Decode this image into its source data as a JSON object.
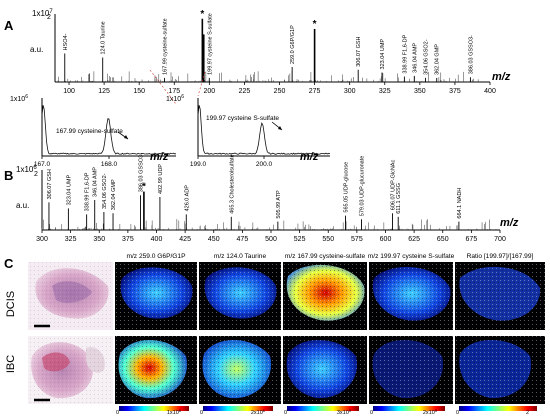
{
  "panels": {
    "A": "A",
    "B": "B",
    "C": "C"
  },
  "chart_data": [
    {
      "type": "line",
      "panel": "A",
      "title": "",
      "ylabel": "a.u.",
      "xlabel": "m/z",
      "y_exponent_label": "1x10",
      "y_exponent": "7",
      "y_tick_top": "2",
      "xlim": [
        90,
        400
      ],
      "xticks": [
        100,
        125,
        150,
        175,
        200,
        225,
        250,
        275,
        300,
        325,
        350,
        375,
        400
      ],
      "peaks": [
        {
          "x": 96.96,
          "y": 0.42,
          "label": "HSO4-"
        },
        {
          "x": 124.0,
          "y": 0.36,
          "label": "124.0 Taurine"
        },
        {
          "x": 167.99,
          "y": 0.06,
          "label": "167.99 cysteine-sulfate"
        },
        {
          "x": 195.0,
          "y": 0.93,
          "label": "*"
        },
        {
          "x": 196.0,
          "y": 0.7,
          "label": ""
        },
        {
          "x": 199.97,
          "y": 0.06,
          "label": "199.97 cysteine S-sulfate"
        },
        {
          "x": 259.0,
          "y": 0.22,
          "label": "259.0 G6P/G1P"
        },
        {
          "x": 275.0,
          "y": 0.78,
          "label": "*"
        },
        {
          "x": 306.07,
          "y": 0.18,
          "label": "306.07 GSH"
        },
        {
          "x": 323.04,
          "y": 0.14,
          "label": "323.04 UMP"
        },
        {
          "x": 338.99,
          "y": 0.08,
          "label": "338.99 F1,6-DP"
        },
        {
          "x": 346.04,
          "y": 0.09,
          "label": "346.04 AMP"
        },
        {
          "x": 354.06,
          "y": 0.06,
          "label": "354.06 GSO2-"
        },
        {
          "x": 362.04,
          "y": 0.06,
          "label": "362.04 GMP"
        },
        {
          "x": 386.03,
          "y": 0.07,
          "label": "386.03 GSSO3-"
        }
      ]
    },
    {
      "type": "line",
      "panel": "A-inset-1",
      "title": "167.99 cysteine-sulfate",
      "xlabel": "m/z",
      "ylabel": "",
      "y_exponent_label": "1x10",
      "y_exponent": "6",
      "xlim": [
        167.0,
        169.0
      ],
      "xticks": [
        167.0,
        168.0
      ],
      "peak": {
        "x": 167.99,
        "y": 0.62
      }
    },
    {
      "type": "line",
      "panel": "A-inset-2",
      "title": "199.97 cysteine S-sulfate",
      "xlabel": "m/z",
      "ylabel": "",
      "y_exponent_label": "1x10",
      "y_exponent": "6",
      "xlim": [
        199.0,
        201.0
      ],
      "xticks": [
        199.0,
        200.0
      ],
      "peak": {
        "x": 199.97,
        "y": 0.52
      }
    },
    {
      "type": "line",
      "panel": "B",
      "title": "",
      "ylabel": "a.u.",
      "xlabel": "m/z",
      "y_exponent_label": "1x10",
      "y_exponent": "6",
      "y_tick_top": "2",
      "xlim": [
        300,
        700
      ],
      "xticks": [
        300,
        325,
        350,
        375,
        400,
        425,
        450,
        475,
        500,
        525,
        550,
        575,
        600,
        625,
        650,
        675,
        700
      ],
      "peaks": [
        {
          "x": 306.07,
          "y": 0.46,
          "label": "306.07 GSH"
        },
        {
          "x": 323.04,
          "y": 0.36,
          "label": "323.04 UMP"
        },
        {
          "x": 338.99,
          "y": 0.26,
          "label": "338.99 F1,6-DP"
        },
        {
          "x": 346.04,
          "y": 0.5,
          "label": "346.04 AMP"
        },
        {
          "x": 354.06,
          "y": 0.3,
          "label": "354.06 GSO2-"
        },
        {
          "x": 362.04,
          "y": 0.28,
          "label": "362.04 GMP"
        },
        {
          "x": 386.03,
          "y": 0.58,
          "label": "386.03 GSSO3-"
        },
        {
          "x": 389.0,
          "y": 0.64,
          "label": "*"
        },
        {
          "x": 402.99,
          "y": 0.55,
          "label": "402.99 UDP"
        },
        {
          "x": 426.0,
          "y": 0.26,
          "label": "426.0 ADP"
        },
        {
          "x": 465.3,
          "y": 0.22,
          "label": "465.3 Cholesterolsulfate"
        },
        {
          "x": 505.99,
          "y": 0.14,
          "label": "505.99 ATP"
        },
        {
          "x": 565.05,
          "y": 0.24,
          "label": "565.05 UDP-glucose"
        },
        {
          "x": 579.03,
          "y": 0.18,
          "label": "579.03 UDP-glucuronate"
        },
        {
          "x": 606.07,
          "y": 0.28,
          "label": "606.07 UDP-GlcNAc"
        },
        {
          "x": 611.1,
          "y": 0.22,
          "label": "611.1 GSSG"
        },
        {
          "x": 664.1,
          "y": 0.14,
          "label": "664.1 NADH"
        }
      ]
    },
    {
      "type": "heatmap",
      "panel": "C",
      "rows": [
        "DCIS",
        "IBC"
      ],
      "columns": [
        {
          "title": "m/z 259.0 G6P/G1P",
          "scale_min": "0",
          "scale_max": "1x10",
          "scale_exp": "6"
        },
        {
          "title": "m/z 124.0 Taurine",
          "scale_min": "0",
          "scale_max": "2x10",
          "scale_exp": "6"
        },
        {
          "title": "m/z 167.99 cysteine-sulfate",
          "scale_min": "0",
          "scale_max": "3x10",
          "scale_exp": "5"
        },
        {
          "title": "m/z 199.97 cysteine S-sulfate",
          "scale_min": "0",
          "scale_max": "2x10",
          "scale_exp": "5"
        },
        {
          "title": "Ratio [199.97]/[167.99]",
          "scale_min": "0",
          "scale_max": "2",
          "scale_exp": ""
        }
      ]
    }
  ],
  "colors": {
    "spectrum": "#111111",
    "red_marker": "#d0352f",
    "heat_bg": "#000000",
    "he_stain_pink": "#c98fb6",
    "he_stain_purple": "#7a4f9a"
  }
}
